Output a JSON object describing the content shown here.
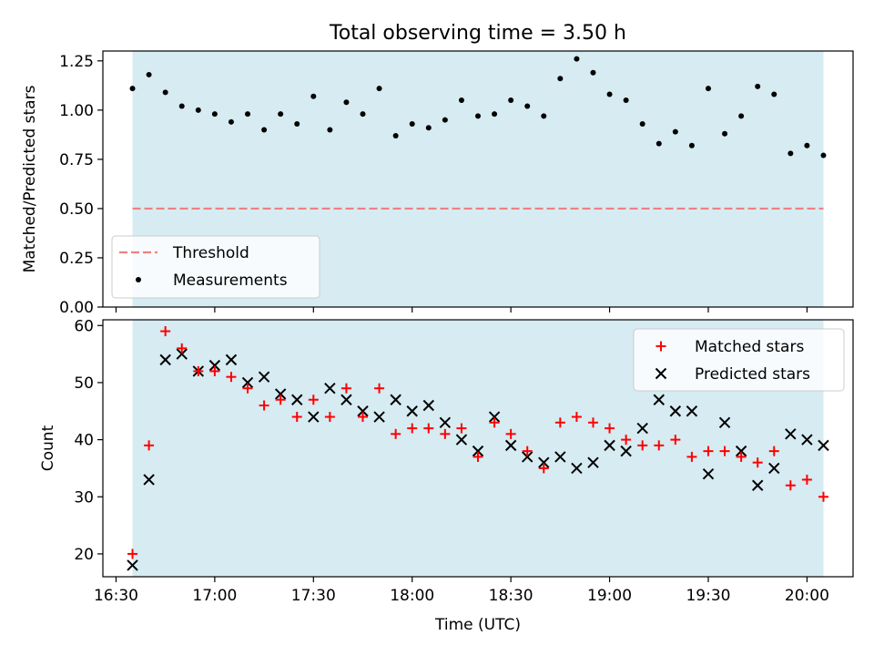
{
  "title": "Total observing time = 3.50 h",
  "colors": {
    "background_band": "#add8e6",
    "threshold": "#f08080",
    "measurement": "#000000",
    "matched": "#ff0000",
    "predicted": "#000000"
  },
  "chart_data": [
    {
      "type": "scatter",
      "ylabel": "Matched/Predicted stars",
      "ylim": [
        0,
        1.3
      ],
      "xlim": [
        "16:26",
        "20:14"
      ],
      "grid": false,
      "shaded_span": [
        "16:35",
        "20:05"
      ],
      "yticks": [
        "0.00",
        "0.25",
        "0.50",
        "0.75",
        "1.00",
        "1.25"
      ],
      "legend": {
        "position": "bottom-left",
        "entries": [
          "Threshold",
          "Measurements"
        ]
      },
      "threshold": {
        "name": "Threshold",
        "value": 0.5
      },
      "series": [
        {
          "name": "Measurements",
          "x": [
            "16:35",
            "16:40",
            "16:45",
            "16:50",
            "16:55",
            "17:00",
            "17:05",
            "17:10",
            "17:15",
            "17:20",
            "17:25",
            "17:30",
            "17:35",
            "17:40",
            "17:45",
            "17:50",
            "17:55",
            "18:00",
            "18:05",
            "18:10",
            "18:15",
            "18:20",
            "18:25",
            "18:30",
            "18:35",
            "18:40",
            "18:45",
            "18:50",
            "18:55",
            "19:00",
            "19:05",
            "19:10",
            "19:15",
            "19:20",
            "19:25",
            "19:30",
            "19:35",
            "19:40",
            "19:45",
            "19:50",
            "19:55",
            "20:00",
            "20:05"
          ],
          "y": [
            1.11,
            1.18,
            1.09,
            1.02,
            1.0,
            0.98,
            0.94,
            0.98,
            0.9,
            0.98,
            0.93,
            1.07,
            0.9,
            1.04,
            0.98,
            1.11,
            0.87,
            0.93,
            0.91,
            0.95,
            1.05,
            0.97,
            0.98,
            1.05,
            1.02,
            0.97,
            1.16,
            1.26,
            1.19,
            1.08,
            1.05,
            0.93,
            0.83,
            0.89,
            0.82,
            1.11,
            0.88,
            0.97,
            1.12,
            1.08,
            0.78,
            0.82,
            0.77
          ]
        }
      ]
    },
    {
      "type": "scatter",
      "xlabel": "Time (UTC)",
      "ylabel": "Count",
      "ylim": [
        16,
        61
      ],
      "xlim": [
        "16:26",
        "20:14"
      ],
      "grid": false,
      "shaded_span": [
        "16:35",
        "20:05"
      ],
      "xticks": [
        "16:30",
        "17:00",
        "17:30",
        "18:00",
        "18:30",
        "19:00",
        "19:30",
        "20:00"
      ],
      "yticks": [
        "20",
        "30",
        "40",
        "50",
        "60"
      ],
      "legend": {
        "position": "top-right",
        "entries": [
          "Matched stars",
          "Predicted stars"
        ]
      },
      "x": [
        "16:35",
        "16:40",
        "16:45",
        "16:50",
        "16:55",
        "17:00",
        "17:05",
        "17:10",
        "17:15",
        "17:20",
        "17:25",
        "17:30",
        "17:35",
        "17:40",
        "17:45",
        "17:50",
        "17:55",
        "18:00",
        "18:05",
        "18:10",
        "18:15",
        "18:20",
        "18:25",
        "18:30",
        "18:35",
        "18:40",
        "18:45",
        "18:50",
        "18:55",
        "19:00",
        "19:05",
        "19:10",
        "19:15",
        "19:20",
        "19:25",
        "19:30",
        "19:35",
        "19:40",
        "19:45",
        "19:50",
        "19:55",
        "20:00",
        "20:05"
      ],
      "series": [
        {
          "name": "Matched stars",
          "values": [
            20,
            39,
            59,
            56,
            52,
            52,
            51,
            49,
            46,
            47,
            44,
            47,
            44,
            49,
            44,
            49,
            41,
            42,
            42,
            41,
            42,
            37,
            43,
            41,
            38,
            35,
            43,
            44,
            43,
            42,
            40,
            39,
            39,
            40,
            37,
            38,
            38,
            37,
            36,
            38,
            32,
            33,
            30
          ]
        },
        {
          "name": "Predicted stars",
          "values": [
            18,
            33,
            54,
            55,
            52,
            53,
            54,
            50,
            51,
            48,
            47,
            44,
            49,
            47,
            45,
            44,
            47,
            45,
            46,
            43,
            40,
            38,
            44,
            39,
            37,
            36,
            37,
            35,
            36,
            39,
            38,
            42,
            47,
            45,
            45,
            34,
            43,
            38,
            32,
            35,
            41,
            40,
            39
          ]
        }
      ]
    }
  ]
}
